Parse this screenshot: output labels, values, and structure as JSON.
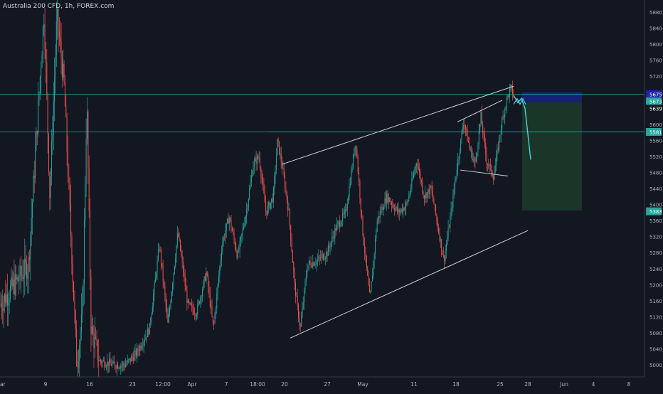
{
  "chart_data": {
    "type": "candlestick",
    "title": "Australia 200 CFD, 1h, FOREX.com",
    "ylim": [
      4970,
      5910
    ],
    "yticks": [
      5000,
      5040,
      5080,
      5120,
      5160,
      5200,
      5240,
      5280,
      5320,
      5360,
      5400,
      5440,
      5480,
      5520,
      5560,
      5600,
      5640,
      5680,
      5720,
      5760,
      5800,
      5840,
      5880
    ],
    "xticks": [
      {
        "label": "ar",
        "x": 0
      },
      {
        "label": "9",
        "x": 64
      },
      {
        "label": "16",
        "x": 126
      },
      {
        "label": "23",
        "x": 186
      },
      {
        "label": "12:00",
        "x": 229
      },
      {
        "label": "Apr",
        "x": 270
      },
      {
        "label": "7",
        "x": 318
      },
      {
        "label": "18:00",
        "x": 362
      },
      {
        "label": "20",
        "x": 400
      },
      {
        "label": "27",
        "x": 460
      },
      {
        "label": "May",
        "x": 510
      },
      {
        "label": "11",
        "x": 582
      },
      {
        "label": "18",
        "x": 641
      },
      {
        "label": "25",
        "x": 703
      },
      {
        "label": "28",
        "x": 742
      },
      {
        "label": "Jun",
        "x": 793
      },
      {
        "label": "4",
        "x": 834
      },
      {
        "label": "8",
        "x": 884
      }
    ],
    "price_path": [
      [
        0,
        5150
      ],
      [
        40,
        5250
      ],
      [
        62,
        5880
      ],
      [
        70,
        5420
      ],
      [
        80,
        5870
      ],
      [
        90,
        5700
      ],
      [
        108,
        5000
      ],
      [
        116,
        5130
      ],
      [
        122,
        5660
      ],
      [
        128,
        5090
      ],
      [
        140,
        5010
      ],
      [
        160,
        5000
      ],
      [
        176,
        5000
      ],
      [
        192,
        5030
      ],
      [
        210,
        5090
      ],
      [
        224,
        5300
      ],
      [
        236,
        5100
      ],
      [
        250,
        5330
      ],
      [
        264,
        5150
      ],
      [
        276,
        5130
      ],
      [
        290,
        5230
      ],
      [
        300,
        5090
      ],
      [
        312,
        5300
      ],
      [
        322,
        5370
      ],
      [
        334,
        5270
      ],
      [
        346,
        5380
      ],
      [
        356,
        5500
      ],
      [
        364,
        5520
      ],
      [
        374,
        5380
      ],
      [
        384,
        5420
      ],
      [
        390,
        5560
      ],
      [
        398,
        5480
      ],
      [
        406,
        5380
      ],
      [
        414,
        5200
      ],
      [
        422,
        5090
      ],
      [
        432,
        5250
      ],
      [
        446,
        5260
      ],
      [
        460,
        5280
      ],
      [
        472,
        5340
      ],
      [
        486,
        5380
      ],
      [
        500,
        5560
      ],
      [
        510,
        5330
      ],
      [
        520,
        5160
      ],
      [
        530,
        5360
      ],
      [
        544,
        5420
      ],
      [
        560,
        5380
      ],
      [
        572,
        5400
      ],
      [
        586,
        5510
      ],
      [
        596,
        5420
      ],
      [
        606,
        5440
      ],
      [
        614,
        5360
      ],
      [
        624,
        5260
      ],
      [
        634,
        5380
      ],
      [
        642,
        5490
      ],
      [
        652,
        5610
      ],
      [
        660,
        5540
      ],
      [
        668,
        5500
      ],
      [
        676,
        5620
      ],
      [
        684,
        5510
      ],
      [
        694,
        5470
      ],
      [
        704,
        5590
      ],
      [
        712,
        5660
      ],
      [
        718,
        5690
      ],
      [
        722,
        5672
      ]
    ],
    "levels": [
      {
        "name": "entry",
        "value": 5675,
        "label": "5675",
        "color": "#26a69a"
      },
      {
        "name": "resistance",
        "value": 5581,
        "label": "5581",
        "color": "#26a69a"
      }
    ],
    "trendlines": [
      {
        "name": "upper-channel-line",
        "from": [
          396,
          5500
        ],
        "to": [
          722,
          5695
        ]
      },
      {
        "name": "lower-channel-line",
        "from": [
          408,
          5067
        ],
        "to": [
          742,
          5335
        ]
      },
      {
        "name": "wedge-top-line",
        "from": [
          643,
          5606
        ],
        "to": [
          706,
          5660
        ]
      },
      {
        "name": "wedge-bottom-line",
        "from": [
          647,
          5486
        ],
        "to": [
          714,
          5471
        ]
      }
    ],
    "projection": [
      [
        722,
        5672
      ],
      [
        728,
        5654
      ],
      [
        733,
        5665
      ],
      [
        738,
        5640
      ],
      [
        746,
        5512
      ]
    ],
    "position": {
      "stop_top": 5680,
      "entry": 5655,
      "target": 5385,
      "from_x": 734,
      "to_x": 818,
      "stop_color": "#1a237e",
      "target_color": "#1b3a2a"
    },
    "price_labels": [
      {
        "value": 5675,
        "label": "5675",
        "bg": "#1e22aa"
      },
      {
        "value": 5657,
        "label": "5673",
        "bg": "#26a69a"
      },
      {
        "value": 5639,
        "label": "5639",
        "bg": "#131722"
      },
      {
        "value": 5581,
        "label": "5581",
        "bg": "#26a69a"
      },
      {
        "value": 5383,
        "label": "5383",
        "bg": "#26a69a"
      }
    ],
    "colors": {
      "background": "#131722",
      "up": "#26a69a",
      "down": "#ef5350",
      "axis_text": "#b2b5be",
      "trendline": "#d1d4dc",
      "projection": "#4dd0e1"
    }
  }
}
